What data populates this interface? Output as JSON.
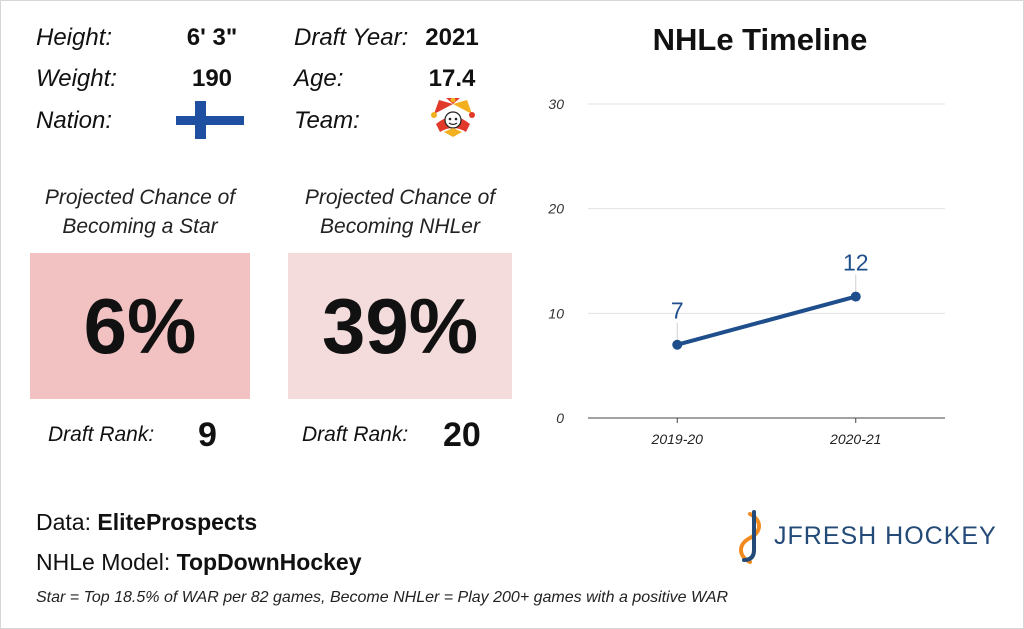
{
  "profile": {
    "height_label": "Height:",
    "height": "6' 3\"",
    "weight_label": "Weight:",
    "weight": "190",
    "nation_label": "Nation:",
    "draft_year_label": "Draft Year:",
    "draft_year": "2021",
    "age_label": "Age:",
    "age": "17.4",
    "team_label": "Team:",
    "nation_flag_icon": "finland-flag-icon",
    "team_logo_icon": "jester-logo-icon"
  },
  "projections": {
    "star_title_line1": "Projected Chance of",
    "star_title_line2": "Becoming a Star",
    "star_value": "6%",
    "nhl_title_line1": "Projected Chance of",
    "nhl_title_line2": "Becoming NHLer",
    "nhl_value": "39%",
    "star_rank_label": "Draft Rank:",
    "star_rank": "9",
    "nhl_rank_label": "Draft Rank:",
    "nhl_rank": "20",
    "star_box_color": "#f2c2c2",
    "nhl_box_color": "#f4dcdc"
  },
  "chart_data": {
    "type": "line",
    "title": "NHLe Timeline",
    "categories": [
      "2019-20",
      "2020-21"
    ],
    "series": [
      {
        "values": [
          7,
          11.6
        ],
        "labels": [
          "7",
          "12"
        ]
      }
    ],
    "ylim": [
      0,
      30
    ],
    "yticks": [
      "0",
      "10",
      "20",
      "30"
    ],
    "grid": true,
    "line_color": "#1f4e8c"
  },
  "footer": {
    "data_label": "Data:",
    "data_source": "EliteProspects",
    "model_label": "NHLe Model:",
    "model_source": "TopDownHockey",
    "note": "Star = Top 18.5% of WAR per 82 games, Become NHLer = Play 200+ games with a positive WAR",
    "brand": "JFRESH HOCKEY"
  }
}
